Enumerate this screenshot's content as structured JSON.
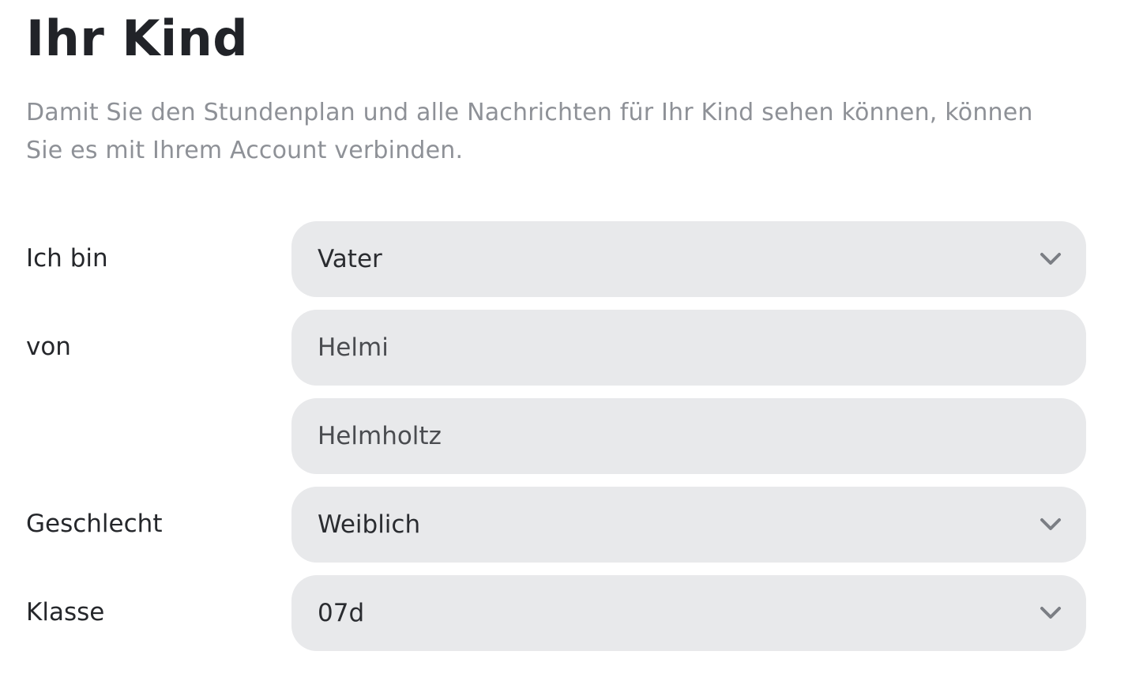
{
  "header": {
    "title": "Ihr Kind",
    "description": "Damit Sie den Stundenplan und alle Nachrichten für Ihr Kind sehen können, können Sie es mit Ihrem Account verbinden."
  },
  "form": {
    "relation": {
      "label": "Ich bin",
      "value": "Vater",
      "icon": "chevron-down-icon"
    },
    "name": {
      "label": "von",
      "first_name": "Helmi",
      "last_name": "Helmholtz"
    },
    "gender": {
      "label": "Geschlecht",
      "value": "Weiblich",
      "icon": "chevron-down-icon"
    },
    "class": {
      "label": "Klasse",
      "value": "07d",
      "icon": "chevron-down-icon"
    }
  },
  "colors": {
    "field_background": "#e8e9eb",
    "title_text": "#212328",
    "muted_text": "#8e9197",
    "chevron": "#7b7e84"
  }
}
